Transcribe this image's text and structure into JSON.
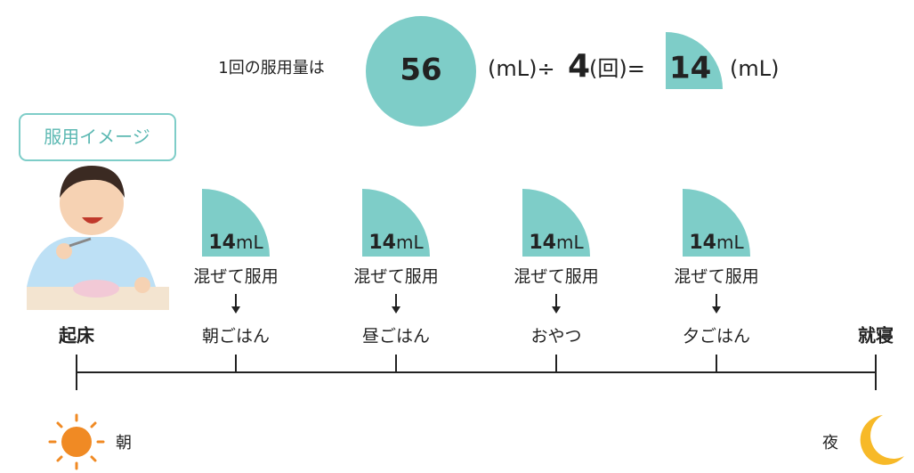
{
  "formula": {
    "label": "1回の服用量は",
    "total": "56",
    "unit_ml_div": "(mL)÷",
    "divisor": "4",
    "unit_times_eq": "(回)=",
    "dose": "14",
    "unit_ml": "(mL)"
  },
  "badge": "服用イメージ",
  "timeline": {
    "start": "起床",
    "end": "就寝",
    "doses": [
      {
        "amount": "14",
        "unit": "mL",
        "instruction": "混ぜて服用",
        "time": "朝ごはん"
      },
      {
        "amount": "14",
        "unit": "mL",
        "instruction": "混ぜて服用",
        "time": "昼ごはん"
      },
      {
        "amount": "14",
        "unit": "mL",
        "instruction": "混ぜて服用",
        "time": "おやつ"
      },
      {
        "amount": "14",
        "unit": "mL",
        "instruction": "混ぜて服用",
        "time": "夕ごはん"
      }
    ]
  },
  "morning": "朝",
  "night": "夜"
}
